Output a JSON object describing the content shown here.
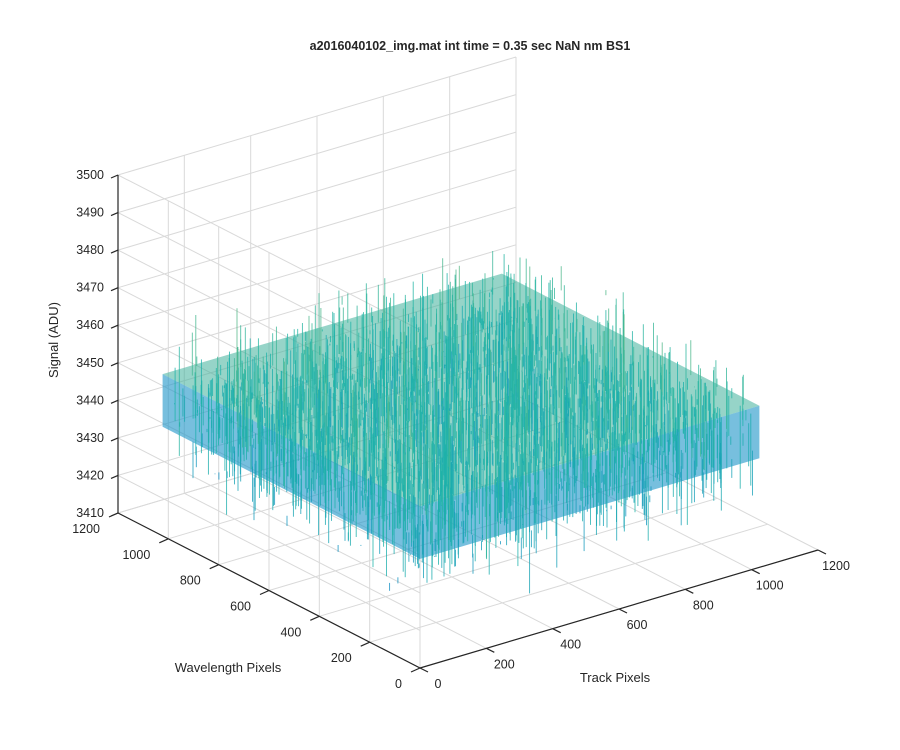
{
  "chart_data": {
    "type": "surface",
    "title": "a2016040102_img.mat int time = 0.35 sec  NaN nm BS1",
    "x_axis": {
      "label": "Track Pixels",
      "ticks": [
        "0",
        "200",
        "400",
        "600",
        "800",
        "1000",
        "1200"
      ],
      "range": [
        0,
        1200
      ]
    },
    "y_axis": {
      "label": "Wavelength Pixels",
      "ticks": [
        "0",
        "200",
        "400",
        "600",
        "800",
        "1000",
        "1200"
      ],
      "range": [
        0,
        1200
      ]
    },
    "z_axis": {
      "label": "Signal (ADU)",
      "ticks": [
        "3410",
        "3420",
        "3430",
        "3440",
        "3450",
        "3460",
        "3470",
        "3480",
        "3490",
        "3500"
      ],
      "range": [
        3410,
        3500
      ]
    },
    "grid": true,
    "colormap": "parula",
    "surface": {
      "x_extent": [
        1,
        1024
      ],
      "y_extent": [
        1,
        1024
      ],
      "mean_signal": 3445,
      "noise_range": [
        3412,
        3492
      ]
    },
    "colors": {
      "low": "#0a7ad6",
      "mid": "#1fb5a8",
      "high": "#c9c24a"
    }
  }
}
